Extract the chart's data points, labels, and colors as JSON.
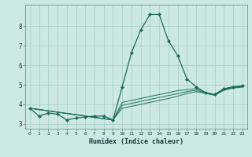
{
  "title": "",
  "xlabel": "Humidex (Indice chaleur)",
  "ylabel": "",
  "bg_color": "#cce8e4",
  "grid_color": "#aacfcc",
  "line_color": "#1a6b5a",
  "xlim": [
    -0.5,
    23.5
  ],
  "ylim": [
    2.75,
    9.1
  ],
  "yticks": [
    3,
    4,
    5,
    6,
    7,
    8
  ],
  "xticks": [
    0,
    1,
    2,
    3,
    4,
    5,
    6,
    7,
    8,
    9,
    10,
    11,
    12,
    13,
    14,
    15,
    16,
    17,
    18,
    19,
    20,
    21,
    22,
    23
  ],
  "lines": [
    {
      "x": [
        0,
        1,
        2,
        3,
        4,
        5,
        6,
        7,
        8,
        9,
        10,
        11,
        12,
        13,
        14,
        15,
        16,
        17,
        18,
        19,
        20,
        21,
        22,
        23
      ],
      "y": [
        3.8,
        3.4,
        3.55,
        3.5,
        3.2,
        3.3,
        3.35,
        3.4,
        3.4,
        3.2,
        4.9,
        6.65,
        7.8,
        8.6,
        8.6,
        7.25,
        6.5,
        5.3,
        4.9,
        4.6,
        4.5,
        4.8,
        4.9,
        4.95
      ],
      "marker": true
    },
    {
      "x": [
        0,
        9,
        10,
        11,
        12,
        13,
        14,
        15,
        16,
        17,
        18,
        19,
        20,
        21,
        22,
        23
      ],
      "y": [
        3.8,
        3.2,
        4.1,
        4.2,
        4.3,
        4.4,
        4.5,
        4.6,
        4.7,
        4.75,
        4.8,
        4.6,
        4.5,
        4.78,
        4.88,
        4.92
      ],
      "marker": false
    },
    {
      "x": [
        0,
        9,
        10,
        11,
        12,
        13,
        14,
        15,
        16,
        17,
        18,
        19,
        20,
        21,
        22,
        23
      ],
      "y": [
        3.8,
        3.2,
        3.95,
        4.05,
        4.15,
        4.25,
        4.35,
        4.45,
        4.55,
        4.65,
        4.72,
        4.58,
        4.48,
        4.75,
        4.86,
        4.9
      ],
      "marker": false
    },
    {
      "x": [
        0,
        9,
        10,
        11,
        12,
        13,
        14,
        15,
        16,
        17,
        18,
        19,
        20,
        21,
        22,
        23
      ],
      "y": [
        3.8,
        3.2,
        3.8,
        3.9,
        4.0,
        4.1,
        4.2,
        4.3,
        4.42,
        4.55,
        4.65,
        4.56,
        4.46,
        4.72,
        4.83,
        4.88
      ],
      "marker": false
    }
  ]
}
